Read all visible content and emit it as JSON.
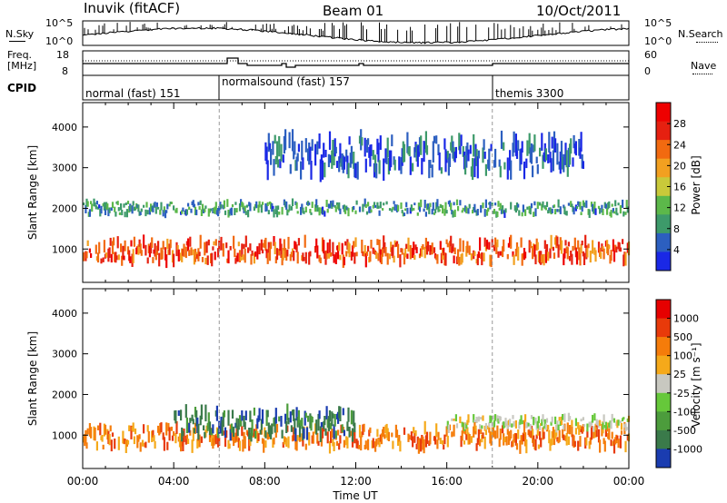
{
  "header": {
    "station": "Inuvik (fitACF)",
    "beam": "Beam 01",
    "date": "10/Oct/2011"
  },
  "noise_panel": {
    "left_label": "N.Sky",
    "right_label": "N.Search",
    "left_ticks": [
      "10^5",
      "10^0"
    ],
    "right_ticks": [
      "10^5",
      "10^0"
    ]
  },
  "freq_panel": {
    "left_label_1": "Freq.",
    "left_label_2": "[MHz]",
    "right_label": "Nave",
    "left_ticks": [
      "18",
      "8"
    ],
    "right_ticks": [
      "60",
      "0"
    ]
  },
  "cpid": {
    "label": "CPID",
    "modes": [
      {
        "name": "normal (fast) 151",
        "start": "00:00",
        "end": "06:00"
      },
      {
        "name": "normalsound (fast) 157",
        "start": "06:00",
        "end": "18:00"
      },
      {
        "name": "themis 3300",
        "start": "18:00",
        "end": "24:00"
      }
    ]
  },
  "chart_data": [
    {
      "type": "heatmap",
      "parameter": "Power",
      "ylabel": "Slant Range [km]",
      "xlabel": "Time UT",
      "x_ticks": [
        "00:00",
        "04:00",
        "08:00",
        "12:00",
        "16:00",
        "20:00",
        "00:00"
      ],
      "y_ticks": [
        1000,
        2000,
        3000,
        4000
      ],
      "ylim": [
        180,
        4600
      ],
      "xlim_hours": [
        0,
        24
      ],
      "colorbar": {
        "label": "Power [dB]",
        "ticks": [
          4,
          8,
          12,
          16,
          20,
          24,
          28
        ],
        "colors": [
          "#1a28e6",
          "#2c5fc0",
          "#3d9a6a",
          "#5cb84a",
          "#c9c93a",
          "#f2a020",
          "#f26a10",
          "#e62010",
          "#ee0000"
        ]
      },
      "features": [
        {
          "desc": "main echo band",
          "time_start": 0,
          "time_end": 24,
          "range_center": 950,
          "range_width": 500,
          "level": 28
        },
        {
          "desc": "upper band",
          "time_start": 0,
          "time_end": 24,
          "range_center": 2000,
          "range_width": 300,
          "level": 12
        },
        {
          "desc": "sporadic far echoes",
          "time_start": 8,
          "time_end": 22,
          "range_center": 3300,
          "range_width": 800,
          "level": 8
        }
      ]
    },
    {
      "type": "heatmap",
      "parameter": "Velocity",
      "ylabel": "Slant Range [km]",
      "xlabel": "Time UT",
      "x_ticks": [
        "00:00",
        "04:00",
        "08:00",
        "12:00",
        "16:00",
        "20:00",
        "00:00"
      ],
      "y_ticks": [
        1000,
        2000,
        3000,
        4000
      ],
      "ylim": [
        180,
        4600
      ],
      "xlim_hours": [
        0,
        24
      ],
      "colorbar": {
        "label": "Velocity [m s⁻¹]",
        "ticks": [
          1000,
          500,
          100,
          25,
          -25,
          -100,
          -500,
          -1000
        ],
        "colors": [
          "#1a3cb0",
          "#3a7a4a",
          "#4c9c3c",
          "#66c83a",
          "#c8c8c0",
          "#f5a91a",
          "#f57c0a",
          "#e83a0a",
          "#e60000"
        ]
      },
      "features": [
        {
          "desc": "negative velocity band",
          "time_start": 0,
          "time_end": 24,
          "range_center": 950,
          "range_width": 500,
          "level": -100
        },
        {
          "desc": "near-zero ground scatter",
          "time_start": 16,
          "time_end": 24,
          "range_center": 1300,
          "range_width": 300,
          "level": 0
        },
        {
          "desc": "positive velocity patches",
          "time_start": 4,
          "time_end": 12,
          "range_center": 1300,
          "range_width": 600,
          "level": 500
        }
      ]
    }
  ]
}
